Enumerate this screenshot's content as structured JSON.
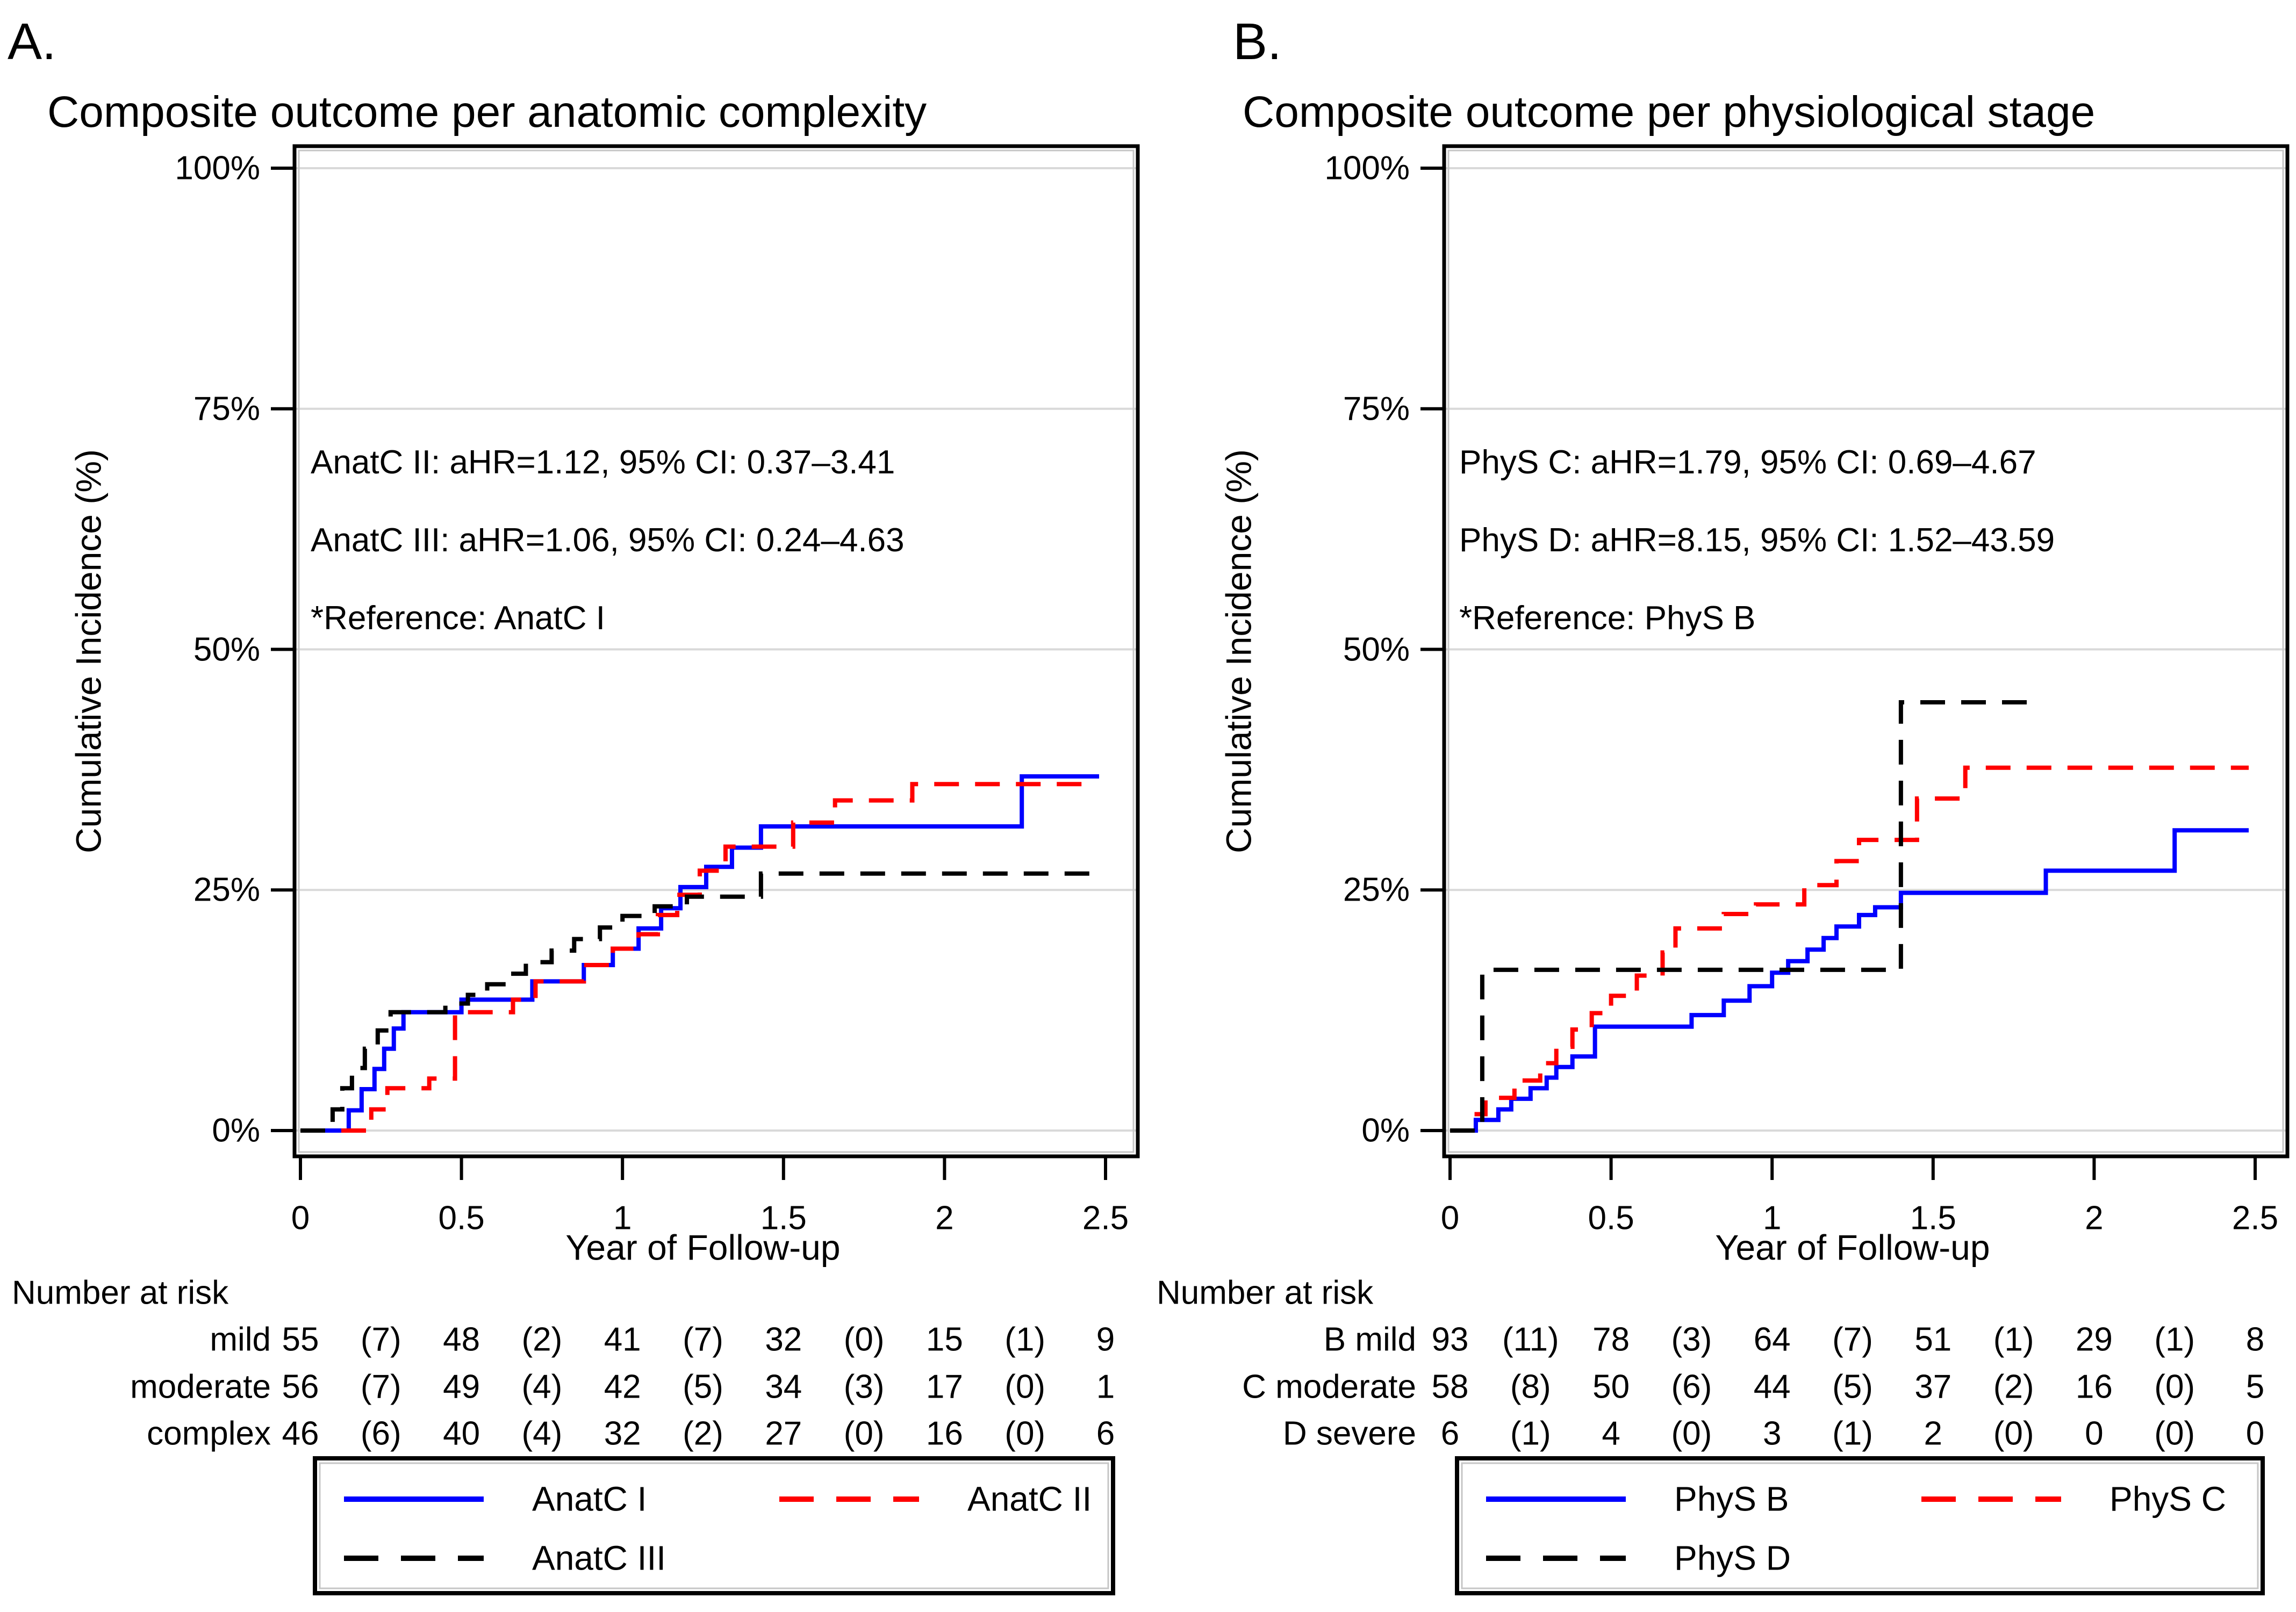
{
  "figure": {
    "background": "#ffffff",
    "text_color": "#000000",
    "grid_color": "#d9d9d9"
  },
  "chart_data": [
    {
      "type": "line",
      "panel_label": "A.",
      "title": "Composite outcome per anatomic complexity",
      "xlabel": "Year of Follow-up",
      "ylabel": "Cumulative Incidence (%)",
      "xlim": [
        0,
        2.5
      ],
      "ylim": [
        0,
        100
      ],
      "xticks": [
        0,
        0.5,
        1,
        1.5,
        2,
        2.5
      ],
      "yticks": [
        0,
        25,
        50,
        75,
        100
      ],
      "ytick_suffix": "%",
      "grid": true,
      "legend_position": "bottom",
      "annotations": [
        "AnatC II: aHR=1.12, 95% CI: 0.37–3.41",
        "AnatC III: aHR=1.06, 95% CI: 0.24–4.63",
        "*Reference: AnatC I"
      ],
      "number_at_risk": {
        "header": "Number at risk",
        "rows": [
          {
            "label": "mild",
            "values": [
              "55",
              "(7)",
              "48",
              "(2)",
              "41",
              "(7)",
              "32",
              "(0)",
              "15",
              "(1)",
              "9"
            ]
          },
          {
            "label": "moderate",
            "values": [
              "56",
              "(7)",
              "49",
              "(4)",
              "42",
              "(5)",
              "34",
              "(3)",
              "17",
              "(0)",
              "1"
            ]
          },
          {
            "label": "complex",
            "values": [
              "46",
              "(6)",
              "40",
              "(4)",
              "32",
              "(2)",
              "27",
              "(0)",
              "16",
              "(0)",
              "6"
            ]
          }
        ]
      },
      "legend": [
        {
          "label": "AnatC I",
          "color": "#0000ff",
          "dash": "solid"
        },
        {
          "label": "AnatC II",
          "color": "#ff0000",
          "dash": "dashed"
        },
        {
          "label": "AnatC III",
          "color": "#000000",
          "dash": "dashed"
        }
      ],
      "series": [
        {
          "name": "AnatC I",
          "color": "#0000ff",
          "dash": "solid",
          "points": [
            [
              0,
              0
            ],
            [
              0.15,
              2.1
            ],
            [
              0.19,
              4.3
            ],
            [
              0.23,
              6.4
            ],
            [
              0.26,
              8.5
            ],
            [
              0.29,
              10.6
            ],
            [
              0.32,
              12.3
            ],
            [
              0.5,
              13.6
            ],
            [
              0.72,
              15.5
            ],
            [
              0.88,
              17.2
            ],
            [
              0.97,
              18.9
            ],
            [
              1.05,
              21.0
            ],
            [
              1.12,
              23.1
            ],
            [
              1.18,
              25.3
            ],
            [
              1.26,
              27.4
            ],
            [
              1.34,
              29.4
            ],
            [
              1.43,
              31.6
            ],
            [
              2.24,
              36.8
            ],
            [
              2.48,
              36.8
            ]
          ]
        },
        {
          "name": "AnatC II",
          "color": "#ff0000",
          "dash": "dashed",
          "points": [
            [
              0,
              0
            ],
            [
              0.22,
              2.2
            ],
            [
              0.27,
              4.4
            ],
            [
              0.4,
              5.4
            ],
            [
              0.48,
              12.3
            ],
            [
              0.66,
              13.6
            ],
            [
              0.73,
              15.5
            ],
            [
              0.88,
              17.2
            ],
            [
              0.97,
              18.9
            ],
            [
              1.05,
              20.4
            ],
            [
              1.11,
              22.4
            ],
            [
              1.17,
              24.5
            ],
            [
              1.24,
              27.0
            ],
            [
              1.32,
              29.5
            ],
            [
              1.53,
              32.0
            ],
            [
              1.66,
              34.3
            ],
            [
              1.9,
              36.0
            ],
            [
              2.45,
              36.0
            ]
          ]
        },
        {
          "name": "AnatC III",
          "color": "#000000",
          "dash": "dashed",
          "points": [
            [
              0,
              0
            ],
            [
              0.1,
              2.2
            ],
            [
              0.13,
              4.4
            ],
            [
              0.16,
              6.5
            ],
            [
              0.2,
              8.5
            ],
            [
              0.24,
              10.4
            ],
            [
              0.28,
              12.3
            ],
            [
              0.45,
              13.2
            ],
            [
              0.52,
              14.1
            ],
            [
              0.58,
              15.2
            ],
            [
              0.64,
              16.3
            ],
            [
              0.7,
              17.5
            ],
            [
              0.78,
              18.7
            ],
            [
              0.85,
              19.9
            ],
            [
              0.93,
              21.1
            ],
            [
              1.0,
              22.3
            ],
            [
              1.1,
              23.3
            ],
            [
              1.2,
              24.3
            ],
            [
              1.43,
              26.7
            ],
            [
              2.48,
              26.7
            ]
          ]
        }
      ]
    },
    {
      "type": "line",
      "panel_label": "B.",
      "title": "Composite outcome per physiological stage",
      "xlabel": "Year of Follow-up",
      "ylabel": "Cumulative Incidence (%)",
      "xlim": [
        0,
        2.5
      ],
      "ylim": [
        0,
        100
      ],
      "xticks": [
        0,
        0.5,
        1,
        1.5,
        2,
        2.5
      ],
      "yticks": [
        0,
        25,
        50,
        75,
        100
      ],
      "ytick_suffix": "%",
      "grid": true,
      "legend_position": "bottom",
      "annotations": [
        "PhyS C: aHR=1.79, 95% CI: 0.69–4.67",
        "PhyS D: aHR=8.15, 95% CI: 1.52–43.59",
        "*Reference: PhyS B"
      ],
      "number_at_risk": {
        "header": "Number at risk",
        "rows": [
          {
            "label": "B mild",
            "values": [
              "93",
              "(11)",
              "78",
              "(3)",
              "64",
              "(7)",
              "51",
              "(1)",
              "29",
              "(1)",
              "8"
            ]
          },
          {
            "label": "C moderate",
            "values": [
              "58",
              "(8)",
              "50",
              "(6)",
              "44",
              "(5)",
              "37",
              "(2)",
              "16",
              "(0)",
              "5"
            ]
          },
          {
            "label": "D severe",
            "values": [
              "6",
              "(1)",
              "4",
              "(0)",
              "3",
              "(1)",
              "2",
              "(0)",
              "0",
              "(0)",
              "0"
            ]
          }
        ]
      },
      "legend": [
        {
          "label": "PhyS B",
          "color": "#0000ff",
          "dash": "solid"
        },
        {
          "label": "PhyS C",
          "color": "#ff0000",
          "dash": "dashed"
        },
        {
          "label": "PhyS D",
          "color": "#000000",
          "dash": "dashed"
        }
      ],
      "series": [
        {
          "name": "PhyS B",
          "color": "#0000ff",
          "dash": "solid",
          "points": [
            [
              0,
              0
            ],
            [
              0.08,
              1.1
            ],
            [
              0.15,
              2.2
            ],
            [
              0.19,
              3.3
            ],
            [
              0.25,
              4.4
            ],
            [
              0.3,
              5.5
            ],
            [
              0.33,
              6.6
            ],
            [
              0.38,
              7.7
            ],
            [
              0.45,
              10.8
            ],
            [
              0.75,
              12.0
            ],
            [
              0.85,
              13.5
            ],
            [
              0.93,
              15.0
            ],
            [
              1.0,
              16.4
            ],
            [
              1.05,
              17.6
            ],
            [
              1.11,
              18.8
            ],
            [
              1.16,
              20.0
            ],
            [
              1.2,
              21.2
            ],
            [
              1.27,
              22.4
            ],
            [
              1.32,
              23.2
            ],
            [
              1.4,
              24.7
            ],
            [
              1.85,
              27.0
            ],
            [
              2.25,
              31.2
            ],
            [
              2.48,
              31.2
            ]
          ]
        },
        {
          "name": "PhyS C",
          "color": "#ff0000",
          "dash": "dashed",
          "points": [
            [
              0,
              0
            ],
            [
              0.07,
              1.7
            ],
            [
              0.11,
              3.4
            ],
            [
              0.2,
              5.2
            ],
            [
              0.28,
              7.0
            ],
            [
              0.33,
              8.7
            ],
            [
              0.38,
              10.5
            ],
            [
              0.44,
              12.2
            ],
            [
              0.5,
              14.0
            ],
            [
              0.58,
              16.1
            ],
            [
              0.66,
              18.5
            ],
            [
              0.7,
              21.0
            ],
            [
              0.85,
              22.5
            ],
            [
              0.95,
              23.5
            ],
            [
              1.1,
              25.5
            ],
            [
              1.2,
              28.0
            ],
            [
              1.27,
              30.2
            ],
            [
              1.45,
              34.5
            ],
            [
              1.6,
              37.7
            ],
            [
              2.48,
              37.7
            ]
          ]
        },
        {
          "name": "PhyS D",
          "color": "#000000",
          "dash": "dashed",
          "points": [
            [
              0,
              0
            ],
            [
              0.1,
              16.7
            ],
            [
              1.4,
              44.5
            ],
            [
              1.82,
              44.5
            ]
          ]
        }
      ]
    }
  ]
}
